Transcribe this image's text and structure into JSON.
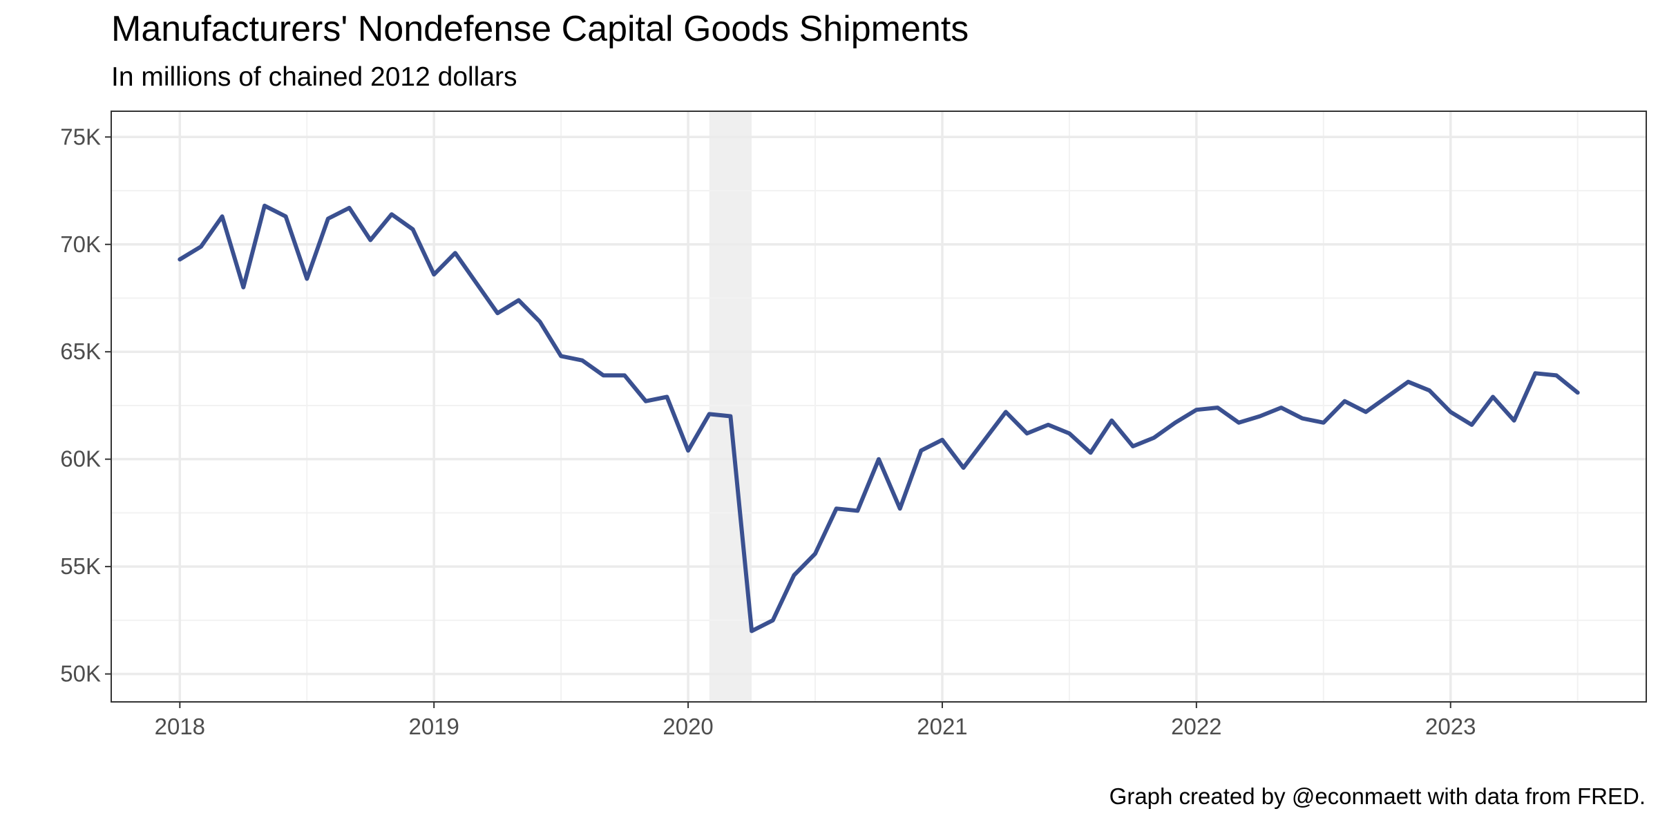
{
  "title": "Manufacturers' Nondefense Capital Goods Shipments",
  "subtitle": "In millions of chained 2012 dollars",
  "caption": "Graph created by @econmaett with data from FRED.",
  "colors": {
    "line": "#3a5090",
    "recession_shade": "#e8e8e8",
    "grid_major": "#ebebeb",
    "grid_minor": "#f2f2f2",
    "panel_border": "#333333",
    "tick_text": "#4d4d4d"
  },
  "chart_data": {
    "type": "line",
    "title": "Manufacturers' Nondefense Capital Goods Shipments",
    "subtitle": "In millions of chained 2012 dollars",
    "xlabel": "",
    "ylabel": "",
    "xlim": [
      2017.73,
      2023.77
    ],
    "ylim": [
      48700,
      76200
    ],
    "grid": true,
    "x_ticks": [
      2018,
      2019,
      2020,
      2021,
      2022,
      2023
    ],
    "x_tick_labels": [
      "2018",
      "2019",
      "2020",
      "2021",
      "2022",
      "2023"
    ],
    "y_ticks": [
      50000,
      55000,
      60000,
      65000,
      70000,
      75000
    ],
    "y_tick_labels": [
      "50K",
      "55K",
      "60K",
      "65K",
      "70K",
      "75K"
    ],
    "recession": {
      "start": "2020-02",
      "end": "2020-04"
    },
    "series": [
      {
        "x": [
          "2018-01",
          "2018-02",
          "2018-03",
          "2018-04",
          "2018-05",
          "2018-06",
          "2018-07",
          "2018-08",
          "2018-09",
          "2018-10",
          "2018-11",
          "2018-12",
          "2019-01",
          "2019-02",
          "2019-03",
          "2019-04",
          "2019-05",
          "2019-06",
          "2019-07",
          "2019-08",
          "2019-09",
          "2019-10",
          "2019-11",
          "2019-12",
          "2020-01",
          "2020-02",
          "2020-03",
          "2020-04",
          "2020-05",
          "2020-06",
          "2020-07",
          "2020-08",
          "2020-09",
          "2020-10",
          "2020-11",
          "2020-12",
          "2021-01",
          "2021-02",
          "2021-03",
          "2021-04",
          "2021-05",
          "2021-06",
          "2021-07",
          "2021-08",
          "2021-09",
          "2021-10",
          "2021-11",
          "2021-12",
          "2022-01",
          "2022-02",
          "2022-03",
          "2022-04",
          "2022-05",
          "2022-06",
          "2022-07",
          "2022-08",
          "2022-09",
          "2022-10",
          "2022-11",
          "2022-12",
          "2023-01",
          "2023-02",
          "2023-03",
          "2023-04",
          "2023-05",
          "2023-06",
          "2023-07"
        ],
        "values": [
          69300,
          69900,
          71300,
          68000,
          71800,
          71300,
          68400,
          71200,
          71700,
          70200,
          71400,
          70700,
          68600,
          69600,
          68200,
          66800,
          67400,
          66400,
          64800,
          64600,
          63900,
          63900,
          62700,
          62900,
          60400,
          62100,
          62000,
          52000,
          52500,
          54600,
          55600,
          57700,
          57600,
          60000,
          57700,
          60400,
          60900,
          59600,
          60900,
          62200,
          61200,
          61600,
          61200,
          60300,
          61800,
          60600,
          61000,
          61700,
          62300,
          62400,
          61700,
          62000,
          62400,
          61900,
          61700,
          62700,
          62200,
          62900,
          63600,
          63200,
          62200,
          61600,
          62900,
          61800,
          64000,
          63900,
          63100
        ]
      }
    ]
  }
}
